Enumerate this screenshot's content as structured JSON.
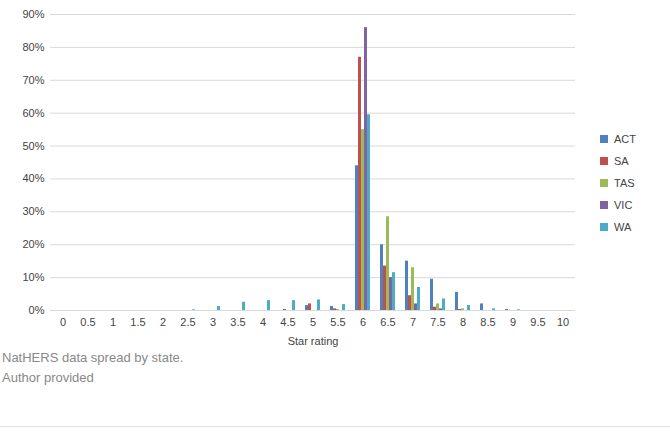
{
  "chart_data": {
    "type": "bar",
    "x_label": "Star rating",
    "caption": [
      "NatHERS data spread by state.",
      "Author provided"
    ],
    "categories": [
      0,
      0.5,
      1,
      1.5,
      2,
      2.5,
      3,
      3.5,
      4,
      4.5,
      5,
      5.5,
      6,
      6.5,
      7,
      7.5,
      8,
      8.5,
      9,
      9.5,
      10
    ],
    "series": [
      {
        "name": "ACT",
        "color": "#4f81bd",
        "values": [
          0,
          0,
          0,
          0,
          0,
          0,
          0,
          0,
          0,
          0,
          1.5,
          1.2,
          44,
          20,
          15,
          9.5,
          5.5,
          2,
          0.3,
          0,
          0
        ]
      },
      {
        "name": "SA",
        "color": "#c0504d",
        "values": [
          0,
          0,
          0,
          0,
          0,
          0,
          0,
          0,
          0,
          0.3,
          2,
          0.5,
          77,
          13.5,
          4.5,
          1,
          0.3,
          0,
          0,
          0,
          0
        ]
      },
      {
        "name": "TAS",
        "color": "#9bbb59",
        "values": [
          0,
          0,
          0,
          0,
          0,
          0,
          0,
          0,
          0,
          0,
          0,
          0.3,
          55,
          28.5,
          13,
          2,
          0.5,
          0,
          0,
          0,
          0
        ]
      },
      {
        "name": "VIC",
        "color": "#8064a2",
        "values": [
          0,
          0,
          0,
          0,
          0,
          0,
          0,
          0,
          0,
          0,
          0,
          0,
          86,
          10,
          2,
          0.5,
          0,
          0,
          0,
          0,
          0
        ]
      },
      {
        "name": "WA",
        "color": "#4bacc6",
        "values": [
          0,
          0,
          0,
          0,
          0,
          0.2,
          1.2,
          2.5,
          3,
          3,
          3.2,
          1.8,
          59.5,
          11.5,
          7,
          3.5,
          1.5,
          0.5,
          0.2,
          0,
          0
        ]
      }
    ],
    "ylim": [
      0,
      90
    ],
    "yticks": [
      {
        "value": 0,
        "label": "0%"
      },
      {
        "value": 10,
        "label": "10%"
      },
      {
        "value": 20,
        "label": "20%"
      },
      {
        "value": 30,
        "label": "30%"
      },
      {
        "value": 40,
        "label": "40%"
      },
      {
        "value": 50,
        "label": "50%"
      },
      {
        "value": 60,
        "label": "60%"
      },
      {
        "value": 70,
        "label": "70%"
      },
      {
        "value": 80,
        "label": "80%"
      },
      {
        "value": 90,
        "label": "90%"
      }
    ],
    "grid": true,
    "legend": "right"
  }
}
